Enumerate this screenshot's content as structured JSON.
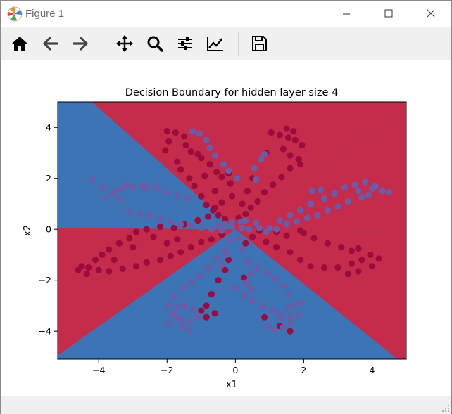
{
  "window": {
    "title": "Figure 1",
    "controls": [
      "minimize-icon",
      "maximize-icon",
      "close-icon"
    ]
  },
  "toolbar": {
    "buttons": [
      {
        "icon": "home-icon"
      },
      {
        "icon": "back-arrow-icon"
      },
      {
        "icon": "forward-arrow-icon"
      },
      {
        "icon": "pan-move-icon"
      },
      {
        "icon": "zoom-magnifier-icon"
      },
      {
        "icon": "configure-subplots-icon"
      },
      {
        "icon": "edit-axis-curve-icon"
      },
      {
        "icon": "save-floppy-icon"
      }
    ]
  },
  "colors": {
    "region_red": "#c52b4a",
    "region_blue": "#3c74b6",
    "point_red": "#9b0b3d",
    "point_purple": "#6a5ca6"
  },
  "chart_data": {
    "type": "scatter",
    "title": "Decision Boundary for hidden layer size 4",
    "xlabel": "x1",
    "ylabel": "x2",
    "xlim": [
      -5.2,
      5.0
    ],
    "ylim": [
      -5.1,
      5.0
    ],
    "xticks": [
      "−4",
      "−2",
      "0",
      "2",
      "4"
    ],
    "yticks": [
      "4",
      "2",
      "0",
      "−2",
      "−4"
    ],
    "xtick_values": [
      -4,
      -2,
      0,
      2,
      4
    ],
    "ytick_values": [
      4,
      2,
      0,
      -2,
      -4
    ],
    "grid": false,
    "background_regions": {
      "description_by_class": "red = class 0 predicted, blue = class 1 predicted",
      "red_polygons": [
        [
          [
            -4.2,
            5.0
          ],
          [
            5.0,
            5.0
          ],
          [
            5.0,
            4.88
          ],
          [
            0.0,
            0.0
          ]
        ],
        [
          [
            5.0,
            4.88
          ],
          [
            5.0,
            -0.15
          ],
          [
            0.0,
            0.0
          ]
        ],
        [
          [
            -5.2,
            0.05
          ],
          [
            0.0,
            0.0
          ],
          [
            -5.2,
            -4.95
          ]
        ],
        [
          [
            0.0,
            0.0
          ],
          [
            5.0,
            -0.15
          ],
          [
            5.0,
            -5.1
          ],
          [
            4.75,
            -5.1
          ]
        ]
      ],
      "blue_polygons": [
        [
          [
            -5.2,
            5.0
          ],
          [
            -4.2,
            5.0
          ],
          [
            0.0,
            0.0
          ],
          [
            -5.2,
            0.05
          ]
        ]
      ]
    },
    "series": [
      {
        "class": "red",
        "points": [
          [
            -2.0,
            3.85
          ],
          [
            -1.75,
            3.8
          ],
          [
            -1.5,
            3.65
          ],
          [
            -1.45,
            3.3
          ],
          [
            -1.3,
            3.05
          ],
          [
            -1.1,
            2.95
          ],
          [
            -1.0,
            2.8
          ],
          [
            -0.75,
            2.55
          ],
          [
            -0.55,
            2.25
          ],
          [
            -0.4,
            2.05
          ],
          [
            -1.95,
            3.45
          ],
          [
            -2.05,
            3.1
          ],
          [
            -1.7,
            2.65
          ],
          [
            -1.6,
            2.35
          ],
          [
            -1.35,
            2.0
          ],
          [
            -1.2,
            1.7
          ],
          [
            -1.0,
            1.3
          ],
          [
            -0.85,
            0.95
          ],
          [
            -0.65,
            0.75
          ],
          [
            -0.5,
            0.55
          ],
          [
            -0.3,
            0.4
          ],
          [
            0.1,
            0.45
          ],
          [
            0.3,
            0.6
          ],
          [
            0.45,
            0.85
          ],
          [
            0.65,
            1.1
          ],
          [
            0.85,
            1.45
          ],
          [
            1.1,
            1.75
          ],
          [
            1.35,
            2.05
          ],
          [
            1.6,
            2.4
          ],
          [
            1.85,
            2.75
          ],
          [
            1.05,
            3.8
          ],
          [
            1.3,
            3.7
          ],
          [
            1.55,
            3.6
          ],
          [
            1.75,
            3.5
          ],
          [
            1.95,
            3.3
          ],
          [
            1.7,
            3.85
          ],
          [
            1.5,
            3.95
          ],
          [
            1.4,
            3.15
          ],
          [
            1.6,
            2.9
          ],
          [
            1.9,
            2.55
          ],
          [
            -0.4,
            1.05
          ],
          [
            -0.6,
            1.5
          ],
          [
            -0.2,
            2.2
          ],
          [
            -0.15,
            1.8
          ],
          [
            -0.1,
            1.3
          ],
          [
            0.2,
            1.0
          ],
          [
            0.5,
            2.0
          ],
          [
            0.35,
            1.5
          ],
          [
            -0.9,
            2.1
          ],
          [
            0.9,
            3.0
          ],
          [
            -0.6,
            0.85
          ],
          [
            -0.8,
            0.5
          ],
          [
            -1.1,
            0.35
          ],
          [
            -1.5,
            0.2
          ],
          [
            -1.8,
            0.05
          ],
          [
            -2.2,
            0.1
          ],
          [
            -2.6,
            0.0
          ],
          [
            -2.9,
            -0.1
          ],
          [
            -3.1,
            -0.35
          ],
          [
            -3.4,
            -0.55
          ],
          [
            -3.7,
            -0.8
          ],
          [
            -3.9,
            -1.0
          ],
          [
            -4.1,
            -1.2
          ],
          [
            -4.3,
            -1.5
          ],
          [
            -4.0,
            -1.6
          ],
          [
            -3.7,
            -1.65
          ],
          [
            -3.3,
            -1.55
          ],
          [
            -2.9,
            -1.45
          ],
          [
            -2.6,
            -1.3
          ],
          [
            -2.2,
            -1.2
          ],
          [
            -1.9,
            -1.05
          ],
          [
            -1.6,
            -0.9
          ],
          [
            -1.3,
            -0.7
          ],
          [
            -1.0,
            -0.5
          ],
          [
            -0.7,
            -0.4
          ],
          [
            -0.4,
            -0.2
          ],
          [
            -2.4,
            -0.3
          ],
          [
            -2.0,
            -0.55
          ],
          [
            -1.7,
            -0.4
          ],
          [
            -3.0,
            -0.7
          ],
          [
            -4.5,
            -1.45
          ],
          [
            -4.35,
            -1.75
          ],
          [
            -4.6,
            -1.6
          ],
          [
            -3.55,
            -1.2
          ],
          [
            0.5,
            -0.3
          ],
          [
            0.9,
            -0.5
          ],
          [
            1.2,
            -0.7
          ],
          [
            1.6,
            -0.9
          ],
          [
            1.9,
            -1.2
          ],
          [
            2.2,
            -1.45
          ],
          [
            2.6,
            -1.5
          ],
          [
            3.0,
            -1.5
          ],
          [
            3.4,
            -1.35
          ],
          [
            3.7,
            -1.2
          ],
          [
            3.95,
            -1.0
          ],
          [
            4.0,
            -1.45
          ],
          [
            4.2,
            -1.15
          ],
          [
            3.6,
            -1.65
          ],
          [
            3.3,
            -1.75
          ],
          [
            1.9,
            -0.05
          ],
          [
            2.3,
            -0.35
          ],
          [
            2.7,
            -0.55
          ],
          [
            3.1,
            -0.7
          ],
          [
            3.4,
            -0.85
          ],
          [
            3.6,
            -0.75
          ],
          [
            0.7,
            -0.05
          ],
          [
            1.5,
            -0.25
          ],
          [
            1.2,
            -0.1
          ],
          [
            2.0,
            -0.15
          ],
          [
            -0.2,
            -1.2
          ],
          [
            -0.3,
            -1.6
          ],
          [
            -0.5,
            -2.0
          ],
          [
            -0.7,
            -2.55
          ],
          [
            -0.85,
            -3.0
          ],
          [
            -1.0,
            -3.2
          ],
          [
            -0.85,
            -3.45
          ],
          [
            -0.6,
            -3.3
          ],
          [
            0.25,
            -1.9
          ],
          [
            0.3,
            -0.55
          ],
          [
            0.85,
            -3.45
          ],
          [
            1.6,
            -4.0
          ],
          [
            1.3,
            -3.8
          ]
        ]
      },
      {
        "class": "purple",
        "points": [
          [
            -1.25,
            3.85
          ],
          [
            -1.05,
            3.75
          ],
          [
            -0.85,
            3.5
          ],
          [
            -0.75,
            3.2
          ],
          [
            -0.6,
            2.9
          ],
          [
            -0.35,
            2.55
          ],
          [
            -0.2,
            2.3
          ],
          [
            0.05,
            2.0
          ],
          [
            0.55,
            2.4
          ],
          [
            0.75,
            2.75
          ],
          [
            0.85,
            2.95
          ],
          [
            0.6,
            1.95
          ],
          [
            -4.2,
            1.95
          ],
          [
            -3.9,
            1.65
          ],
          [
            -3.6,
            1.4
          ],
          [
            -3.3,
            1.6
          ],
          [
            -3.0,
            1.65
          ],
          [
            -2.7,
            1.7
          ],
          [
            -2.3,
            1.65
          ],
          [
            -2.0,
            1.45
          ],
          [
            -1.7,
            1.35
          ],
          [
            -1.4,
            1.2
          ],
          [
            -3.5,
            1.55
          ],
          [
            -3.2,
            1.75
          ],
          [
            -2.6,
            1.65
          ],
          [
            -3.8,
            1.25
          ],
          [
            -3.4,
            1.2
          ],
          [
            -3.1,
            0.65
          ],
          [
            -2.8,
            0.6
          ],
          [
            -2.5,
            0.55
          ],
          [
            -2.2,
            0.4
          ],
          [
            -1.9,
            0.3
          ],
          [
            -1.6,
            0.2
          ],
          [
            -1.3,
            0.15
          ],
          [
            -1.0,
            0.05
          ],
          [
            -0.7,
            0.0
          ],
          [
            -0.4,
            -0.05
          ],
          [
            -0.1,
            0.1
          ],
          [
            0.2,
            0.05
          ],
          [
            0.4,
            0.0
          ],
          [
            0.7,
            0.05
          ],
          [
            1.0,
            0.05
          ],
          [
            -0.3,
            0.2
          ],
          [
            -0.1,
            0.3
          ],
          [
            0.15,
            0.3
          ],
          [
            0.3,
            0.35
          ],
          [
            0.6,
            0.25
          ],
          [
            -0.5,
            0.15
          ],
          [
            1.3,
            0.35
          ],
          [
            1.6,
            0.55
          ],
          [
            1.9,
            0.75
          ],
          [
            2.2,
            1.0
          ],
          [
            2.6,
            1.2
          ],
          [
            2.9,
            1.4
          ],
          [
            3.2,
            1.65
          ],
          [
            3.5,
            1.75
          ],
          [
            3.8,
            1.85
          ],
          [
            4.0,
            1.6
          ],
          [
            4.3,
            1.5
          ],
          [
            3.6,
            1.5
          ],
          [
            3.9,
            1.35
          ],
          [
            3.3,
            1.1
          ],
          [
            3.0,
            0.9
          ],
          [
            2.7,
            0.75
          ],
          [
            2.4,
            0.55
          ],
          [
            2.1,
            0.45
          ],
          [
            1.8,
            0.3
          ],
          [
            1.5,
            0.2
          ],
          [
            1.2,
            0.0
          ],
          [
            0.9,
            -0.1
          ],
          [
            4.1,
            1.7
          ],
          [
            3.7,
            1.25
          ],
          [
            2.25,
            1.5
          ],
          [
            2.5,
            1.55
          ],
          [
            4.5,
            1.45
          ],
          [
            0.1,
            -0.35
          ],
          [
            0.2,
            -0.8
          ],
          [
            0.35,
            -1.3
          ],
          [
            0.45,
            -1.75
          ],
          [
            0.35,
            -2.2
          ],
          [
            0.25,
            -2.6
          ],
          [
            0.5,
            -2.8
          ],
          [
            0.8,
            -3.0
          ],
          [
            1.1,
            -3.2
          ],
          [
            1.35,
            -3.5
          ],
          [
            1.6,
            -3.65
          ],
          [
            1.4,
            -3.85
          ],
          [
            1.15,
            -3.95
          ],
          [
            0.95,
            -3.8
          ],
          [
            1.55,
            -3.1
          ],
          [
            1.7,
            -2.95
          ],
          [
            1.55,
            -2.55
          ],
          [
            1.4,
            -2.2
          ],
          [
            1.15,
            -1.95
          ],
          [
            0.9,
            -1.7
          ],
          [
            0.65,
            -1.5
          ],
          [
            1.85,
            -3.35
          ],
          [
            1.9,
            -2.9
          ],
          [
            1.6,
            -3.45
          ],
          [
            1.3,
            -3.35
          ],
          [
            -0.15,
            -0.45
          ],
          [
            -0.3,
            -0.85
          ],
          [
            -0.55,
            -1.15
          ],
          [
            -0.8,
            -1.5
          ],
          [
            -1.05,
            -1.85
          ],
          [
            -1.3,
            -2.1
          ],
          [
            -1.55,
            -2.3
          ],
          [
            -1.8,
            -2.65
          ],
          [
            -1.95,
            -3.0
          ],
          [
            -1.85,
            -3.35
          ],
          [
            -1.6,
            -3.55
          ],
          [
            -1.35,
            -3.6
          ],
          [
            -1.1,
            -3.45
          ],
          [
            -1.25,
            -3.15
          ],
          [
            -1.5,
            -3.0
          ],
          [
            -1.7,
            -3.05
          ],
          [
            -1.55,
            -3.85
          ],
          [
            -1.35,
            -3.95
          ],
          [
            -1.7,
            -3.45
          ],
          [
            -1.95,
            -3.7
          ],
          [
            -0.4,
            -1.4
          ],
          [
            -0.25,
            -1.0
          ],
          [
            0.3,
            -2.1
          ],
          [
            0.45,
            -2.35
          ],
          [
            -0.05,
            -2.3
          ]
        ]
      }
    ]
  }
}
